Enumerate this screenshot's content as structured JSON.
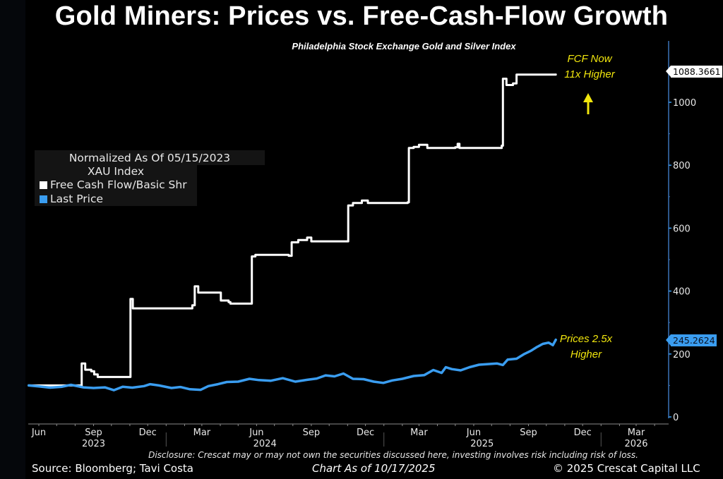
{
  "header": {
    "title": "Gold Miners: Prices vs. Free-Cash-Flow Growth",
    "subtitle": "Philadelphia Stock Exchange Gold and Silver Index"
  },
  "legend": {
    "heading": "Normalized As Of 05/15/2023",
    "index": "XAU Index",
    "items": [
      {
        "label": "Free Cash Flow/Basic Shr",
        "color": "#ffffff"
      },
      {
        "label": "Last Price",
        "color": "#3a9df0"
      }
    ]
  },
  "annotations": {
    "fcf_line1": "FCF Now",
    "fcf_line2": "11x Higher",
    "price_line1": "Prices 2.5x",
    "price_line2": "Higher",
    "arrow_color": "#f1e60d"
  },
  "value_tags": {
    "fcf_last": "1088.3661",
    "price_last": "245.2624"
  },
  "footer": {
    "disclosure": "Disclosure: Crescat may or may not own the securities discussed here, investing involves risk including risk of loss.",
    "source": "Source: Bloomberg; Tavi Costa",
    "as_of": "Chart As of 10/17/2025",
    "copyright": "© 2025 Crescat Capital LLC"
  },
  "chart_data": {
    "type": "line",
    "title": "Gold Miners: Prices vs. Free-Cash-Flow Growth",
    "subtitle": "Philadelphia Stock Exchange Gold and Silver Index",
    "xlabel": "",
    "ylabel": "",
    "x_range": [
      "2023-05-15",
      "2026-05-15"
    ],
    "ylim": [
      0,
      1150
    ],
    "y_ticks": [
      0,
      200,
      400,
      600,
      800,
      1000
    ],
    "y_axis_side": "right",
    "x_ticks": [
      {
        "date": "2023-06-01",
        "label": "Jun"
      },
      {
        "date": "2023-09-01",
        "label": "Sep"
      },
      {
        "date": "2023-12-01",
        "label": "Dec"
      },
      {
        "date": "2024-03-01",
        "label": "Mar"
      },
      {
        "date": "2024-06-01",
        "label": "Jun"
      },
      {
        "date": "2024-09-01",
        "label": "Sep"
      },
      {
        "date": "2024-12-01",
        "label": "Dec"
      },
      {
        "date": "2025-03-01",
        "label": "Mar"
      },
      {
        "date": "2025-06-01",
        "label": "Jun"
      },
      {
        "date": "2025-09-01",
        "label": "Sep"
      },
      {
        "date": "2025-12-01",
        "label": "Dec"
      },
      {
        "date": "2026-03-01",
        "label": "Mar"
      }
    ],
    "year_labels": [
      {
        "date": "2023-09-01",
        "label": "2023"
      },
      {
        "date": "2024-06-15",
        "label": "2024"
      },
      {
        "date": "2025-06-15",
        "label": "2025"
      },
      {
        "date": "2026-03-01",
        "label": "2026"
      }
    ],
    "grid": false,
    "legend_position": "top-left",
    "series": [
      {
        "name": "Free Cash Flow/Basic Shr",
        "color": "#ffffff",
        "step": true,
        "points": [
          [
            "2023-05-15",
            100
          ],
          [
            "2023-08-10",
            100
          ],
          [
            "2023-08-12",
            170
          ],
          [
            "2023-08-18",
            150
          ],
          [
            "2023-08-28",
            145
          ],
          [
            "2023-09-02",
            135
          ],
          [
            "2023-09-08",
            127
          ],
          [
            "2023-10-31",
            127
          ],
          [
            "2023-11-02",
            375
          ],
          [
            "2023-11-06",
            345
          ],
          [
            "2024-02-10",
            345
          ],
          [
            "2024-02-14",
            355
          ],
          [
            "2024-02-18",
            415
          ],
          [
            "2024-02-24",
            395
          ],
          [
            "2024-03-28",
            395
          ],
          [
            "2024-04-02",
            370
          ],
          [
            "2024-04-15",
            365
          ],
          [
            "2024-04-18",
            360
          ],
          [
            "2024-05-20",
            360
          ],
          [
            "2024-05-24",
            510
          ],
          [
            "2024-05-30",
            515
          ],
          [
            "2024-07-25",
            512
          ],
          [
            "2024-07-30",
            555
          ],
          [
            "2024-08-10",
            562
          ],
          [
            "2024-08-25",
            570
          ],
          [
            "2024-09-01",
            558
          ],
          [
            "2024-10-31",
            558
          ],
          [
            "2024-11-02",
            672
          ],
          [
            "2024-11-10",
            680
          ],
          [
            "2024-11-25",
            688
          ],
          [
            "2024-12-05",
            680
          ],
          [
            "2025-02-10",
            682
          ],
          [
            "2025-02-12",
            855
          ],
          [
            "2025-02-20",
            858
          ],
          [
            "2025-03-01",
            865
          ],
          [
            "2025-03-15",
            855
          ],
          [
            "2025-05-01",
            857
          ],
          [
            "2025-05-05",
            868
          ],
          [
            "2025-05-08",
            855
          ],
          [
            "2025-07-15",
            855
          ],
          [
            "2025-07-18",
            862
          ],
          [
            "2025-07-20",
            1075
          ],
          [
            "2025-07-26",
            1055
          ],
          [
            "2025-08-06",
            1060
          ],
          [
            "2025-08-12",
            1088
          ],
          [
            "2025-10-17",
            1088.3661
          ]
        ]
      },
      {
        "name": "Last Price",
        "color": "#3a9df0",
        "step": false,
        "points": [
          [
            "2023-05-15",
            100
          ],
          [
            "2023-06-01",
            97
          ],
          [
            "2023-06-20",
            93
          ],
          [
            "2023-07-10",
            96
          ],
          [
            "2023-07-25",
            102
          ],
          [
            "2023-08-15",
            94
          ],
          [
            "2023-09-01",
            92
          ],
          [
            "2023-09-20",
            94
          ],
          [
            "2023-10-05",
            85
          ],
          [
            "2023-10-20",
            96
          ],
          [
            "2023-11-05",
            93
          ],
          [
            "2023-11-25",
            98
          ],
          [
            "2023-12-05",
            104
          ],
          [
            "2023-12-20",
            100
          ],
          [
            "2024-01-10",
            92
          ],
          [
            "2024-01-25",
            95
          ],
          [
            "2024-02-10",
            88
          ],
          [
            "2024-02-28",
            86
          ],
          [
            "2024-03-12",
            98
          ],
          [
            "2024-03-28",
            104
          ],
          [
            "2024-04-12",
            111
          ],
          [
            "2024-05-01",
            112
          ],
          [
            "2024-05-20",
            121
          ],
          [
            "2024-06-05",
            117
          ],
          [
            "2024-06-25",
            115
          ],
          [
            "2024-07-15",
            123
          ],
          [
            "2024-08-05",
            112
          ],
          [
            "2024-08-25",
            118
          ],
          [
            "2024-09-10",
            122
          ],
          [
            "2024-09-25",
            132
          ],
          [
            "2024-10-10",
            129
          ],
          [
            "2024-10-25",
            138
          ],
          [
            "2024-11-10",
            121
          ],
          [
            "2024-11-28",
            120
          ],
          [
            "2024-12-15",
            112
          ],
          [
            "2024-12-31",
            108
          ],
          [
            "2025-01-15",
            116
          ],
          [
            "2025-02-01",
            121
          ],
          [
            "2025-02-20",
            130
          ],
          [
            "2025-03-10",
            133
          ],
          [
            "2025-03-25",
            149
          ],
          [
            "2025-04-08",
            140
          ],
          [
            "2025-04-15",
            158
          ],
          [
            "2025-04-25",
            152
          ],
          [
            "2025-05-10",
            148
          ],
          [
            "2025-05-25",
            158
          ],
          [
            "2025-06-10",
            166
          ],
          [
            "2025-06-25",
            168
          ],
          [
            "2025-07-10",
            170
          ],
          [
            "2025-07-20",
            165
          ],
          [
            "2025-07-28",
            182
          ],
          [
            "2025-08-12",
            185
          ],
          [
            "2025-08-25",
            200
          ],
          [
            "2025-09-05",
            210
          ],
          [
            "2025-09-15",
            222
          ],
          [
            "2025-09-25",
            232
          ],
          [
            "2025-10-05",
            236
          ],
          [
            "2025-10-12",
            228
          ],
          [
            "2025-10-17",
            245.2624
          ]
        ]
      }
    ],
    "annotations": [
      {
        "text": "FCF Now 11x Higher",
        "color": "#f1e60d"
      },
      {
        "text": "Prices 2.5x Higher",
        "color": "#f1e60d"
      }
    ],
    "last_value_labels": {
      "Free Cash Flow/Basic Shr": 1088.3661,
      "Last Price": 245.2624
    }
  }
}
